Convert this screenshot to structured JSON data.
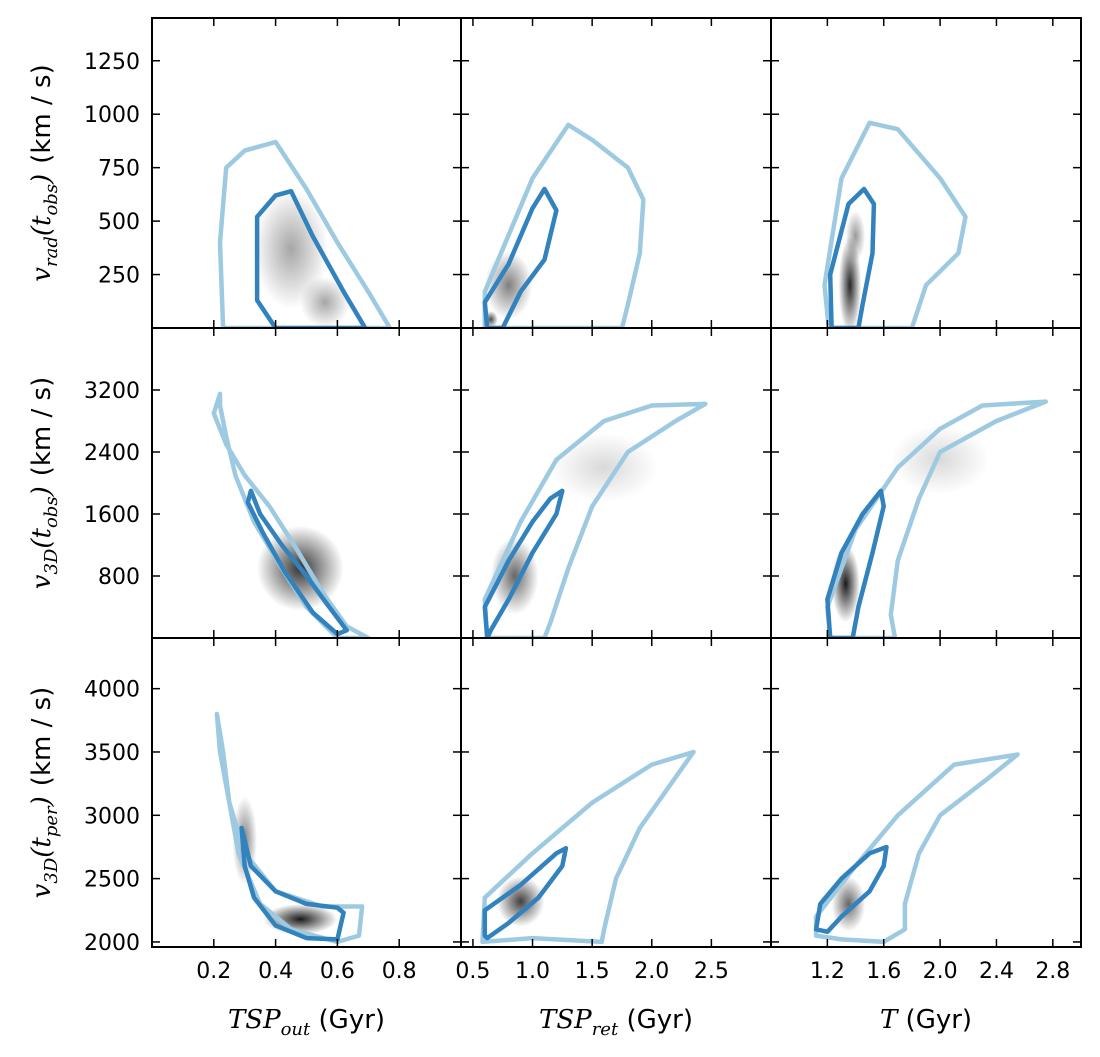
{
  "colors": {
    "outer_contour": "#9ecae1",
    "inner_contour": "#3182bd",
    "frame": "#000000",
    "density": "#000000"
  },
  "chart_data": {
    "type": "contour-density-grid",
    "rows": [
      {
        "id": "vrad",
        "ylabel": {
          "sym": "v",
          "sub": "rad",
          "arg": "t",
          "argsub": "obs",
          "unit": "(km / s)"
        },
        "ylim": [
          0,
          1450
        ],
        "yticks": [
          "250",
          "500",
          "750",
          "1000",
          "1250"
        ]
      },
      {
        "id": "v3d_obs",
        "ylabel": {
          "sym": "v",
          "sub": "3D",
          "arg": "t",
          "argsub": "obs",
          "unit": "(km / s)"
        },
        "ylim": [
          0,
          4000
        ],
        "yticks": [
          "800",
          "1600",
          "2400",
          "3200"
        ]
      },
      {
        "id": "v3d_per",
        "ylabel": {
          "sym": "v",
          "sub": "3D",
          "arg": "t",
          "argsub": "per",
          "unit": "(km / s)"
        },
        "ylim": [
          1960,
          4400
        ],
        "yticks": [
          "2000",
          "2500",
          "3000",
          "3500",
          "4000"
        ]
      }
    ],
    "cols": [
      {
        "id": "tsp_out",
        "xlabel": {
          "sym": "TSP",
          "sub": "out",
          "unit": "(Gyr)"
        },
        "xlim": [
          0,
          1.0
        ],
        "xticks": [
          "0.2",
          "0.4",
          "0.6",
          "0.8"
        ]
      },
      {
        "id": "tsp_ret",
        "xlabel": {
          "sym": "TSP",
          "sub": "ret",
          "unit": "(Gyr)"
        },
        "xlim": [
          0.4,
          3.0
        ],
        "xticks": [
          "0.5",
          "1.0",
          "1.5",
          "2.0",
          "2.5"
        ]
      },
      {
        "id": "t_total",
        "xlabel": {
          "sym": "T",
          "sub": "",
          "unit": "(Gyr)"
        },
        "xlim": [
          0.8,
          3.0
        ],
        "xticks": [
          "1.2",
          "1.6",
          "2.0",
          "2.4",
          "2.8"
        ]
      }
    ],
    "panels": [
      {
        "row": 0,
        "col": 0,
        "outer": [
          [
            0.23,
            0
          ],
          [
            0.22,
            400
          ],
          [
            0.24,
            750
          ],
          [
            0.3,
            830
          ],
          [
            0.4,
            870
          ],
          [
            0.5,
            650
          ],
          [
            0.6,
            400
          ],
          [
            0.7,
            170
          ],
          [
            0.77,
            0
          ]
        ],
        "inner": [
          [
            0.4,
            0
          ],
          [
            0.34,
            130
          ],
          [
            0.34,
            520
          ],
          [
            0.4,
            620
          ],
          [
            0.45,
            640
          ],
          [
            0.52,
            430
          ],
          [
            0.62,
            170
          ],
          [
            0.69,
            0
          ]
        ],
        "density": [
          {
            "x": 0.45,
            "y": 370,
            "rx": 0.12,
            "ry": 280,
            "a": 0.35
          },
          {
            "x": 0.56,
            "y": 120,
            "rx": 0.08,
            "ry": 120,
            "a": 0.35
          }
        ]
      },
      {
        "row": 0,
        "col": 1,
        "outer": [
          [
            0.6,
            0
          ],
          [
            0.6,
            170
          ],
          [
            1.0,
            700
          ],
          [
            1.3,
            950
          ],
          [
            1.5,
            880
          ],
          [
            1.8,
            750
          ],
          [
            1.93,
            600
          ],
          [
            1.9,
            350
          ],
          [
            1.8,
            110
          ],
          [
            1.75,
            0
          ]
        ],
        "inner": [
          [
            0.62,
            0
          ],
          [
            0.6,
            120
          ],
          [
            0.8,
            300
          ],
          [
            1.0,
            560
          ],
          [
            1.1,
            650
          ],
          [
            1.2,
            550
          ],
          [
            1.1,
            320
          ],
          [
            0.9,
            170
          ],
          [
            0.75,
            0
          ]
        ],
        "density": [
          {
            "x": 0.8,
            "y": 200,
            "rx": 0.2,
            "ry": 160,
            "a": 0.5
          },
          {
            "x": 0.65,
            "y": 40,
            "rx": 0.06,
            "ry": 40,
            "a": 0.7
          }
        ]
      },
      {
        "row": 0,
        "col": 2,
        "outer": [
          [
            1.21,
            0
          ],
          [
            1.18,
            200
          ],
          [
            1.3,
            700
          ],
          [
            1.5,
            960
          ],
          [
            1.7,
            930
          ],
          [
            2.0,
            700
          ],
          [
            2.18,
            520
          ],
          [
            2.13,
            350
          ],
          [
            1.9,
            200
          ],
          [
            1.8,
            0
          ]
        ],
        "inner": [
          [
            1.23,
            0
          ],
          [
            1.22,
            250
          ],
          [
            1.35,
            580
          ],
          [
            1.46,
            650
          ],
          [
            1.53,
            580
          ],
          [
            1.52,
            350
          ],
          [
            1.45,
            110
          ],
          [
            1.42,
            0
          ]
        ],
        "density": [
          {
            "x": 1.36,
            "y": 200,
            "rx": 0.08,
            "ry": 230,
            "a": 0.85
          },
          {
            "x": 1.4,
            "y": 430,
            "rx": 0.07,
            "ry": 120,
            "a": 0.4
          }
        ]
      },
      {
        "row": 1,
        "col": 0,
        "outer": [
          [
            0.22,
            3150
          ],
          [
            0.2,
            2900
          ],
          [
            0.24,
            2500
          ],
          [
            0.3,
            2100
          ],
          [
            0.38,
            1700
          ],
          [
            0.46,
            1200
          ],
          [
            0.55,
            600
          ],
          [
            0.63,
            150
          ],
          [
            0.7,
            0
          ],
          [
            0.6,
            0
          ],
          [
            0.5,
            400
          ],
          [
            0.42,
            900
          ],
          [
            0.33,
            1500
          ],
          [
            0.27,
            2100
          ],
          [
            0.24,
            2600
          ],
          [
            0.22,
            3000
          ]
        ],
        "inner": [
          [
            0.32,
            1900
          ],
          [
            0.35,
            1600
          ],
          [
            0.42,
            1200
          ],
          [
            0.5,
            800
          ],
          [
            0.57,
            420
          ],
          [
            0.63,
            100
          ],
          [
            0.6,
            50
          ],
          [
            0.52,
            330
          ],
          [
            0.43,
            850
          ],
          [
            0.36,
            1350
          ],
          [
            0.31,
            1750
          ]
        ],
        "density": [
          {
            "x": 0.48,
            "y": 900,
            "rx": 0.14,
            "ry": 550,
            "a": 0.8
          }
        ]
      },
      {
        "row": 1,
        "col": 1,
        "outer": [
          [
            0.62,
            0
          ],
          [
            0.6,
            500
          ],
          [
            0.9,
            1500
          ],
          [
            1.2,
            2300
          ],
          [
            1.6,
            2800
          ],
          [
            2.0,
            3000
          ],
          [
            2.45,
            3020
          ],
          [
            2.2,
            2800
          ],
          [
            1.8,
            2400
          ],
          [
            1.5,
            1700
          ],
          [
            1.3,
            900
          ],
          [
            1.15,
            200
          ],
          [
            1.1,
            0
          ]
        ],
        "inner": [
          [
            0.62,
            0
          ],
          [
            0.6,
            400
          ],
          [
            0.8,
            1000
          ],
          [
            1.0,
            1500
          ],
          [
            1.15,
            1800
          ],
          [
            1.25,
            1900
          ],
          [
            1.2,
            1600
          ],
          [
            1.0,
            1100
          ],
          [
            0.8,
            500
          ],
          [
            0.65,
            100
          ]
        ],
        "density": [
          {
            "x": 0.85,
            "y": 800,
            "rx": 0.2,
            "ry": 500,
            "a": 0.6
          },
          {
            "x": 1.6,
            "y": 2200,
            "rx": 0.45,
            "ry": 450,
            "a": 0.15
          }
        ]
      },
      {
        "row": 1,
        "col": 2,
        "outer": [
          [
            1.22,
            0
          ],
          [
            1.2,
            400
          ],
          [
            1.4,
            1400
          ],
          [
            1.7,
            2200
          ],
          [
            2.0,
            2700
          ],
          [
            2.3,
            3000
          ],
          [
            2.75,
            3050
          ],
          [
            2.4,
            2800
          ],
          [
            2.0,
            2400
          ],
          [
            1.85,
            1800
          ],
          [
            1.7,
            1000
          ],
          [
            1.65,
            300
          ],
          [
            1.68,
            0
          ]
        ],
        "inner": [
          [
            1.22,
            0
          ],
          [
            1.2,
            500
          ],
          [
            1.3,
            1100
          ],
          [
            1.45,
            1600
          ],
          [
            1.58,
            1900
          ],
          [
            1.6,
            1700
          ],
          [
            1.52,
            1100
          ],
          [
            1.42,
            400
          ],
          [
            1.38,
            0
          ]
        ],
        "density": [
          {
            "x": 1.33,
            "y": 700,
            "rx": 0.1,
            "ry": 500,
            "a": 0.9
          },
          {
            "x": 2.0,
            "y": 2300,
            "rx": 0.35,
            "ry": 450,
            "a": 0.15
          }
        ]
      },
      {
        "row": 2,
        "col": 0,
        "outer": [
          [
            0.21,
            3800
          ],
          [
            0.22,
            3500
          ],
          [
            0.25,
            3100
          ],
          [
            0.3,
            2700
          ],
          [
            0.4,
            2400
          ],
          [
            0.55,
            2280
          ],
          [
            0.68,
            2280
          ],
          [
            0.67,
            2050
          ],
          [
            0.6,
            2000
          ],
          [
            0.45,
            2100
          ],
          [
            0.35,
            2300
          ],
          [
            0.28,
            2700
          ],
          [
            0.25,
            3100
          ],
          [
            0.23,
            3500
          ]
        ],
        "inner": [
          [
            0.29,
            2900
          ],
          [
            0.32,
            2600
          ],
          [
            0.4,
            2400
          ],
          [
            0.5,
            2300
          ],
          [
            0.6,
            2270
          ],
          [
            0.62,
            2230
          ],
          [
            0.6,
            2020
          ],
          [
            0.5,
            2030
          ],
          [
            0.4,
            2130
          ],
          [
            0.33,
            2350
          ],
          [
            0.3,
            2600
          ]
        ],
        "density": [
          {
            "x": 0.48,
            "y": 2180,
            "rx": 0.12,
            "ry": 120,
            "a": 0.9
          },
          {
            "x": 0.3,
            "y": 2800,
            "rx": 0.04,
            "ry": 350,
            "a": 0.5
          }
        ]
      },
      {
        "row": 2,
        "col": 1,
        "outer": [
          [
            0.58,
            2000
          ],
          [
            0.6,
            2350
          ],
          [
            1.0,
            2700
          ],
          [
            1.5,
            3100
          ],
          [
            2.0,
            3400
          ],
          [
            2.35,
            3500
          ],
          [
            2.2,
            3300
          ],
          [
            1.9,
            2900
          ],
          [
            1.7,
            2500
          ],
          [
            1.6,
            2100
          ],
          [
            1.58,
            2000
          ],
          [
            1.0,
            2030
          ]
        ],
        "inner": [
          [
            0.6,
            2050
          ],
          [
            0.6,
            2250
          ],
          [
            0.9,
            2450
          ],
          [
            1.2,
            2700
          ],
          [
            1.28,
            2740
          ],
          [
            1.25,
            2600
          ],
          [
            1.05,
            2350
          ],
          [
            0.8,
            2150
          ],
          [
            0.62,
            2030
          ]
        ],
        "density": [
          {
            "x": 0.9,
            "y": 2320,
            "rx": 0.2,
            "ry": 200,
            "a": 0.75
          }
        ]
      },
      {
        "row": 2,
        "col": 2,
        "outer": [
          [
            1.12,
            2050
          ],
          [
            1.12,
            2200
          ],
          [
            1.4,
            2600
          ],
          [
            1.7,
            3000
          ],
          [
            2.1,
            3400
          ],
          [
            2.55,
            3480
          ],
          [
            2.35,
            3300
          ],
          [
            2.0,
            3000
          ],
          [
            1.85,
            2700
          ],
          [
            1.75,
            2300
          ],
          [
            1.75,
            2100
          ],
          [
            1.6,
            2000
          ],
          [
            1.3,
            2020
          ]
        ],
        "inner": [
          [
            1.12,
            2100
          ],
          [
            1.15,
            2300
          ],
          [
            1.3,
            2500
          ],
          [
            1.5,
            2700
          ],
          [
            1.62,
            2750
          ],
          [
            1.6,
            2600
          ],
          [
            1.5,
            2400
          ],
          [
            1.3,
            2200
          ],
          [
            1.2,
            2080
          ]
        ],
        "density": [
          {
            "x": 1.35,
            "y": 2300,
            "rx": 0.12,
            "ry": 220,
            "a": 0.6
          }
        ]
      }
    ]
  }
}
